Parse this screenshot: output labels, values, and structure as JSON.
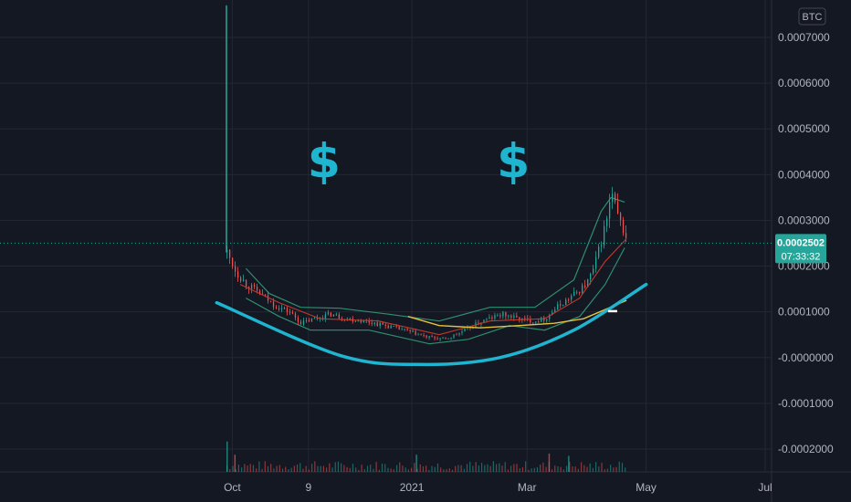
{
  "chart_data": {
    "type": "candlestick",
    "currency_label": "BTC",
    "y_axis": {
      "min": -0.00025,
      "max": 0.00077,
      "ticks": [
        "0.0007000",
        "0.0006000",
        "0.0005000",
        "0.0004000",
        "0.0003000",
        "0.0002000",
        "0.0001000",
        "-0.0000000",
        "-0.0001000",
        "-0.0002000"
      ],
      "tick_values": [
        0.0007,
        0.0006,
        0.0005,
        0.0004,
        0.0003,
        0.0002,
        0.0001,
        0,
        -0.0001,
        -0.0002
      ]
    },
    "x_axis": {
      "ticks": [
        "Oct",
        "9",
        "2021",
        "Mar",
        "May",
        "Jul"
      ],
      "tick_dates": [
        "2020-10-01",
        "2020-11-09",
        "2021-01-01",
        "2021-03-01",
        "2021-05-01",
        "2021-07-01"
      ]
    },
    "last_price": {
      "value": 0.0002502,
      "label": "0.0002502",
      "countdown": "07:33:32",
      "color": "#26a69a"
    },
    "spike": {
      "date": "2020-09-28",
      "high": 0.00077,
      "color": "#26a69a"
    },
    "price_path": [
      [
        "2020-09-28",
        0.00023
      ],
      [
        "2020-10-03",
        0.000185
      ],
      [
        "2020-10-08",
        0.00016
      ],
      [
        "2020-10-15",
        0.00014
      ],
      [
        "2020-10-22",
        0.000115
      ],
      [
        "2020-10-30",
        0.0001
      ],
      [
        "2020-11-05",
        7.5e-05
      ],
      [
        "2020-11-12",
        8.5e-05
      ],
      [
        "2020-11-20",
        9.5e-05
      ],
      [
        "2020-11-28",
        8.5e-05
      ],
      [
        "2020-12-08",
        8e-05
      ],
      [
        "2020-12-18",
        7e-05
      ],
      [
        "2020-12-28",
        6e-05
      ],
      [
        "2021-01-08",
        4.5e-05
      ],
      [
        "2021-01-18",
        4e-05
      ],
      [
        "2021-01-28",
        6e-05
      ],
      [
        "2021-02-06",
        8e-05
      ],
      [
        "2021-02-16",
        9.5e-05
      ],
      [
        "2021-02-24",
        8.5e-05
      ],
      [
        "2021-03-04",
        8e-05
      ],
      [
        "2021-03-10",
        8.5e-05
      ],
      [
        "2021-03-16",
        0.00011
      ],
      [
        "2021-03-24",
        0.000135
      ],
      [
        "2021-03-31",
        0.00016
      ],
      [
        "2021-04-04",
        0.000195
      ],
      [
        "2021-04-08",
        0.00026
      ],
      [
        "2021-04-11",
        0.00031
      ],
      [
        "2021-04-13",
        0.00036
      ],
      [
        "2021-04-16",
        0.00031
      ],
      [
        "2021-04-19",
        0.00028
      ],
      [
        "2021-04-21",
        0.0002502
      ]
    ],
    "upper_band": [
      [
        "2020-10-08",
        0.000195
      ],
      [
        "2020-10-20",
        0.00014
      ],
      [
        "2020-11-05",
        0.00011
      ],
      [
        "2020-11-25",
        0.000108
      ],
      [
        "2020-12-20",
        9.5e-05
      ],
      [
        "2021-01-15",
        8e-05
      ],
      [
        "2021-02-10",
        0.00011
      ],
      [
        "2021-03-05",
        0.00011
      ],
      [
        "2021-03-25",
        0.00017
      ],
      [
        "2021-04-08",
        0.00032
      ],
      [
        "2021-04-13",
        0.00035
      ],
      [
        "2021-04-20",
        0.00034
      ]
    ],
    "lower_band": [
      [
        "2020-10-08",
        0.00013
      ],
      [
        "2020-10-25",
        9e-05
      ],
      [
        "2020-11-10",
        6e-05
      ],
      [
        "2020-12-10",
        6e-05
      ],
      [
        "2021-01-10",
        3e-05
      ],
      [
        "2021-01-30",
        4e-05
      ],
      [
        "2021-02-20",
        7e-05
      ],
      [
        "2021-03-10",
        6e-05
      ],
      [
        "2021-03-28",
        9e-05
      ],
      [
        "2021-04-10",
        0.00016
      ],
      [
        "2021-04-20",
        0.00024
      ]
    ],
    "ma_short": [
      [
        "2020-10-05",
        0.00016
      ],
      [
        "2020-10-25",
        0.00012
      ],
      [
        "2020-11-15",
        8.5e-05
      ],
      [
        "2020-12-15",
        8e-05
      ],
      [
        "2021-01-15",
        5e-05
      ],
      [
        "2021-02-10",
        8e-05
      ],
      [
        "2021-03-10",
        8.5e-05
      ],
      [
        "2021-03-28",
        0.00013
      ],
      [
        "2021-04-10",
        0.00021
      ],
      [
        "2021-04-21",
        0.00026
      ]
    ],
    "ma_long": [
      [
        "2020-12-30",
        9e-05
      ],
      [
        "2021-01-15",
        7e-05
      ],
      [
        "2021-02-05",
        6.5e-05
      ],
      [
        "2021-02-25",
        7e-05
      ],
      [
        "2021-03-15",
        7.5e-05
      ],
      [
        "2021-03-30",
        8.5e-05
      ],
      [
        "2021-04-10",
        0.000105
      ],
      [
        "2021-04-21",
        0.000125
      ]
    ],
    "curve": {
      "color": "#1fb4cf",
      "points": [
        [
          "2020-09-23",
          0.00012
        ],
        [
          "2020-11-25",
          5e-06
        ],
        [
          "2021-01-05",
          -1.5e-05
        ],
        [
          "2021-02-15",
          0.0
        ],
        [
          "2021-03-25",
          6e-05
        ],
        [
          "2021-05-01",
          0.00016
        ]
      ]
    },
    "annotations": [
      {
        "text": "$",
        "date": "2020-11-17",
        "value": 0.00043,
        "color": "#1fb4cf"
      },
      {
        "text": "$",
        "date": "2021-02-22",
        "value": 0.00043,
        "color": "#1fb4cf"
      }
    ],
    "volume": {
      "spikes": [
        [
          "2020-09-28",
          0.000185
        ],
        [
          "2020-10-02",
          7e-05
        ],
        [
          "2021-01-03",
          7e-05
        ],
        [
          "2021-03-12",
          8e-05
        ],
        [
          "2021-03-22",
          6e-05
        ]
      ]
    },
    "colors": {
      "background": "#141823",
      "grid": "#232734",
      "up": "#26a69a",
      "down": "#ef5350",
      "band": "#2f8f6f",
      "ma_short": "#c0392b",
      "ma_long": "#e6c13a",
      "axis_text": "#b2b5be"
    },
    "grid": true
  }
}
